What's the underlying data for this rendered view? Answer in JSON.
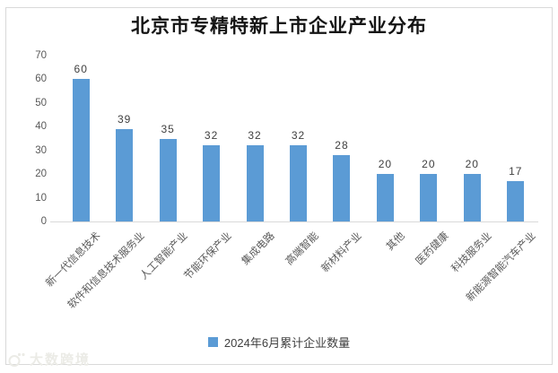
{
  "chart_data": {
    "type": "bar",
    "title": "北京市专精特新上市企业产业分布",
    "categories": [
      "新一代信息技术",
      "软件和信息技术服务业",
      "人工智能产业",
      "节能环保产业",
      "集成电路",
      "高端智能",
      "新材料产业",
      "其他",
      "医药健康",
      "科技服务业",
      "新能源智能汽车产业"
    ],
    "values": [
      60,
      39,
      35,
      32,
      32,
      32,
      28,
      20,
      20,
      20,
      17
    ],
    "series_name": "2024年6月累计企业数量",
    "xlabel": "",
    "ylabel": "",
    "ylim": [
      0,
      70
    ],
    "y_ticks": [
      0,
      10,
      20,
      30,
      40,
      50,
      60,
      70
    ],
    "grid": false,
    "data_labels": true,
    "legend_position": "bottom",
    "bar_color": "#5b9bd5",
    "x_label_rotation_deg": 45
  },
  "watermark": {
    "text": "大数跨境"
  }
}
